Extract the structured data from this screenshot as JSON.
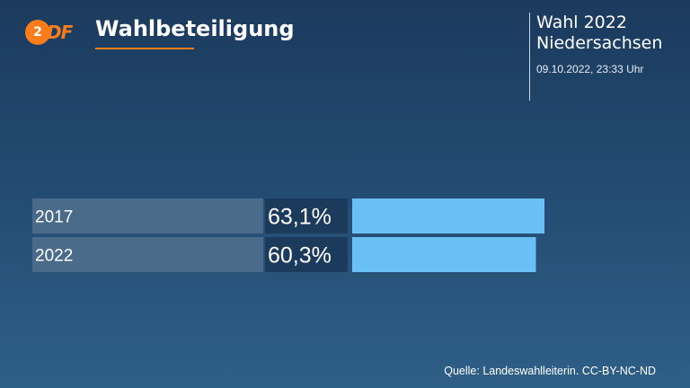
{
  "logo": {
    "mark": "2",
    "text": "DF"
  },
  "header": {
    "title": "Wahlbeteiligung",
    "right_line1": "Wahl 2022",
    "right_line2": "Niedersachsen",
    "timestamp": "09.10.2022, 23:33 Uhr"
  },
  "colors": {
    "accent": "#fa7d19",
    "bar": "#6abff5",
    "label_bg": "#4a6b8a",
    "value_bg": "#1b3a5c"
  },
  "chart_data": {
    "type": "bar",
    "orientation": "horizontal",
    "categories": [
      "2017",
      "2022"
    ],
    "values": [
      63.1,
      60.3
    ],
    "value_labels": [
      "63,1%",
      "60,3%"
    ],
    "title": "Wahlbeteiligung",
    "unit": "%",
    "xlim": [
      0,
      63.1
    ]
  },
  "footer": {
    "source": "Quelle: Landeswahlleiterin. CC-BY-NC-ND"
  }
}
